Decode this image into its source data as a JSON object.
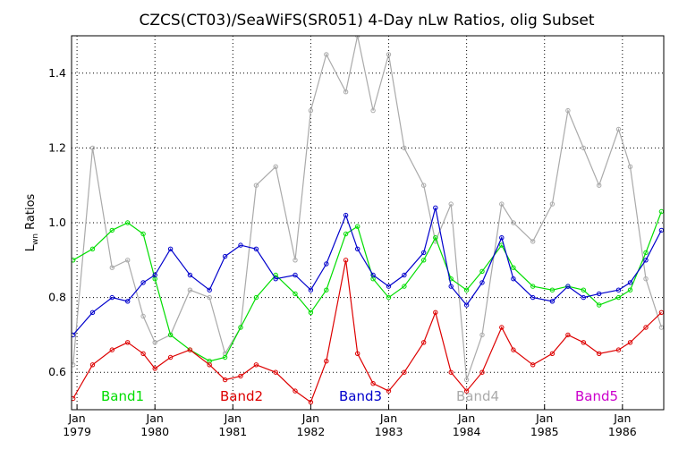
{
  "chart_data": {
    "type": "line",
    "title": "CZCS(CT03)/SeaWiFS(SR051) 4-Day nLw Ratios, olig Subset",
    "ylabel_main": "L",
    "ylabel_sub": "wn",
    "ylabel_rest": " Ratios",
    "xlabel": "",
    "xlim": [
      1978.93,
      1986.53
    ],
    "ylim": [
      0.5,
      1.5
    ],
    "yticks": [
      "0.6",
      "0.8",
      "1.0",
      "1.2",
      "1.4"
    ],
    "yticks_values": [
      0.6,
      0.8,
      1.0,
      1.2,
      1.4
    ],
    "xticks": [
      {
        "month": "Jan",
        "year": "1979",
        "x": 1979
      },
      {
        "month": "Jan",
        "year": "1980",
        "x": 1980
      },
      {
        "month": "Jan",
        "year": "1981",
        "x": 1981
      },
      {
        "month": "Jan",
        "year": "1982",
        "x": 1982
      },
      {
        "month": "Jan",
        "year": "1983",
        "x": 1983
      },
      {
        "month": "Jan",
        "year": "1984",
        "x": 1984
      },
      {
        "month": "Jan",
        "year": "1985",
        "x": 1985
      },
      {
        "month": "Jan",
        "year": "1986",
        "x": 1986
      }
    ],
    "grid": true,
    "legend_placement": "bottom, inside plot",
    "series": [
      {
        "name": "Band1",
        "color": "#00dd00",
        "x": [
          1978.95,
          1979.2,
          1979.45,
          1979.65,
          1979.85,
          1980.0,
          1980.2,
          1980.45,
          1980.7,
          1980.9,
          1981.1,
          1981.3,
          1981.55,
          1981.8,
          1982.0,
          1982.2,
          1982.45,
          1982.6,
          1982.8,
          1983.0,
          1983.2,
          1983.45,
          1983.6,
          1983.8,
          1984.0,
          1984.2,
          1984.45,
          1984.6,
          1984.85,
          1985.1,
          1985.3,
          1985.5,
          1985.7,
          1985.95,
          1986.1,
          1986.3,
          1986.5
        ],
        "values": [
          0.9,
          0.93,
          0.98,
          1.0,
          0.97,
          0.85,
          0.7,
          0.66,
          0.63,
          0.64,
          0.72,
          0.8,
          0.86,
          0.81,
          0.76,
          0.82,
          0.97,
          0.99,
          0.85,
          0.8,
          0.83,
          0.9,
          0.96,
          0.85,
          0.82,
          0.87,
          0.94,
          0.88,
          0.83,
          0.82,
          0.83,
          0.82,
          0.78,
          0.8,
          0.82,
          0.92,
          1.03
        ]
      },
      {
        "name": "Band2",
        "color": "#dd0000",
        "x": [
          1978.95,
          1979.2,
          1979.45,
          1979.65,
          1979.85,
          1980.0,
          1980.2,
          1980.45,
          1980.7,
          1980.9,
          1981.1,
          1981.3,
          1981.55,
          1981.8,
          1982.0,
          1982.2,
          1982.45,
          1982.6,
          1982.8,
          1983.0,
          1983.2,
          1983.45,
          1983.6,
          1983.8,
          1984.0,
          1984.2,
          1984.45,
          1984.6,
          1984.85,
          1985.1,
          1985.3,
          1985.5,
          1985.7,
          1985.95,
          1986.1,
          1986.3,
          1986.5
        ],
        "values": [
          0.53,
          0.62,
          0.66,
          0.68,
          0.65,
          0.61,
          0.64,
          0.66,
          0.62,
          0.58,
          0.59,
          0.62,
          0.6,
          0.55,
          0.52,
          0.63,
          0.9,
          0.65,
          0.57,
          0.55,
          0.6,
          0.68,
          0.76,
          0.6,
          0.55,
          0.6,
          0.72,
          0.66,
          0.62,
          0.65,
          0.7,
          0.68,
          0.65,
          0.66,
          0.68,
          0.72,
          0.76
        ]
      },
      {
        "name": "Band3",
        "color": "#0000cc",
        "x": [
          1978.95,
          1979.2,
          1979.45,
          1979.65,
          1979.85,
          1980.0,
          1980.2,
          1980.45,
          1980.7,
          1980.9,
          1981.1,
          1981.3,
          1981.55,
          1981.8,
          1982.0,
          1982.2,
          1982.45,
          1982.6,
          1982.8,
          1983.0,
          1983.2,
          1983.45,
          1983.6,
          1983.8,
          1984.0,
          1984.2,
          1984.45,
          1984.6,
          1984.85,
          1985.1,
          1985.3,
          1985.5,
          1985.7,
          1985.95,
          1986.1,
          1986.3,
          1986.5
        ],
        "values": [
          0.7,
          0.76,
          0.8,
          0.79,
          0.84,
          0.86,
          0.93,
          0.86,
          0.82,
          0.91,
          0.94,
          0.93,
          0.85,
          0.86,
          0.82,
          0.89,
          1.02,
          0.93,
          0.86,
          0.83,
          0.86,
          0.92,
          1.04,
          0.83,
          0.78,
          0.84,
          0.96,
          0.85,
          0.8,
          0.79,
          0.83,
          0.8,
          0.81,
          0.82,
          0.84,
          0.9,
          0.98
        ]
      },
      {
        "name": "Band4",
        "color": "#aaaaaa",
        "x": [
          1978.95,
          1979.2,
          1979.45,
          1979.65,
          1979.85,
          1980.0,
          1980.2,
          1980.45,
          1980.7,
          1980.9,
          1981.1,
          1981.3,
          1981.55,
          1981.8,
          1982.0,
          1982.2,
          1982.45,
          1982.6,
          1982.8,
          1983.0,
          1983.2,
          1983.45,
          1983.6,
          1983.8,
          1984.0,
          1984.2,
          1984.45,
          1984.6,
          1984.85,
          1985.1,
          1985.3,
          1985.5,
          1985.7,
          1985.95,
          1986.1,
          1986.3,
          1986.5
        ],
        "values": [
          0.62,
          1.2,
          0.88,
          0.9,
          0.75,
          0.68,
          0.7,
          0.82,
          0.8,
          0.65,
          0.72,
          1.1,
          1.15,
          0.9,
          1.3,
          1.45,
          1.35,
          1.5,
          1.3,
          1.45,
          1.2,
          1.1,
          0.95,
          1.05,
          0.58,
          0.7,
          1.05,
          1.0,
          0.95,
          1.05,
          1.3,
          1.2,
          1.1,
          1.25,
          1.15,
          0.85,
          0.72
        ]
      },
      {
        "name": "Band5",
        "color": "#cc00cc",
        "x": [],
        "values": []
      }
    ]
  }
}
